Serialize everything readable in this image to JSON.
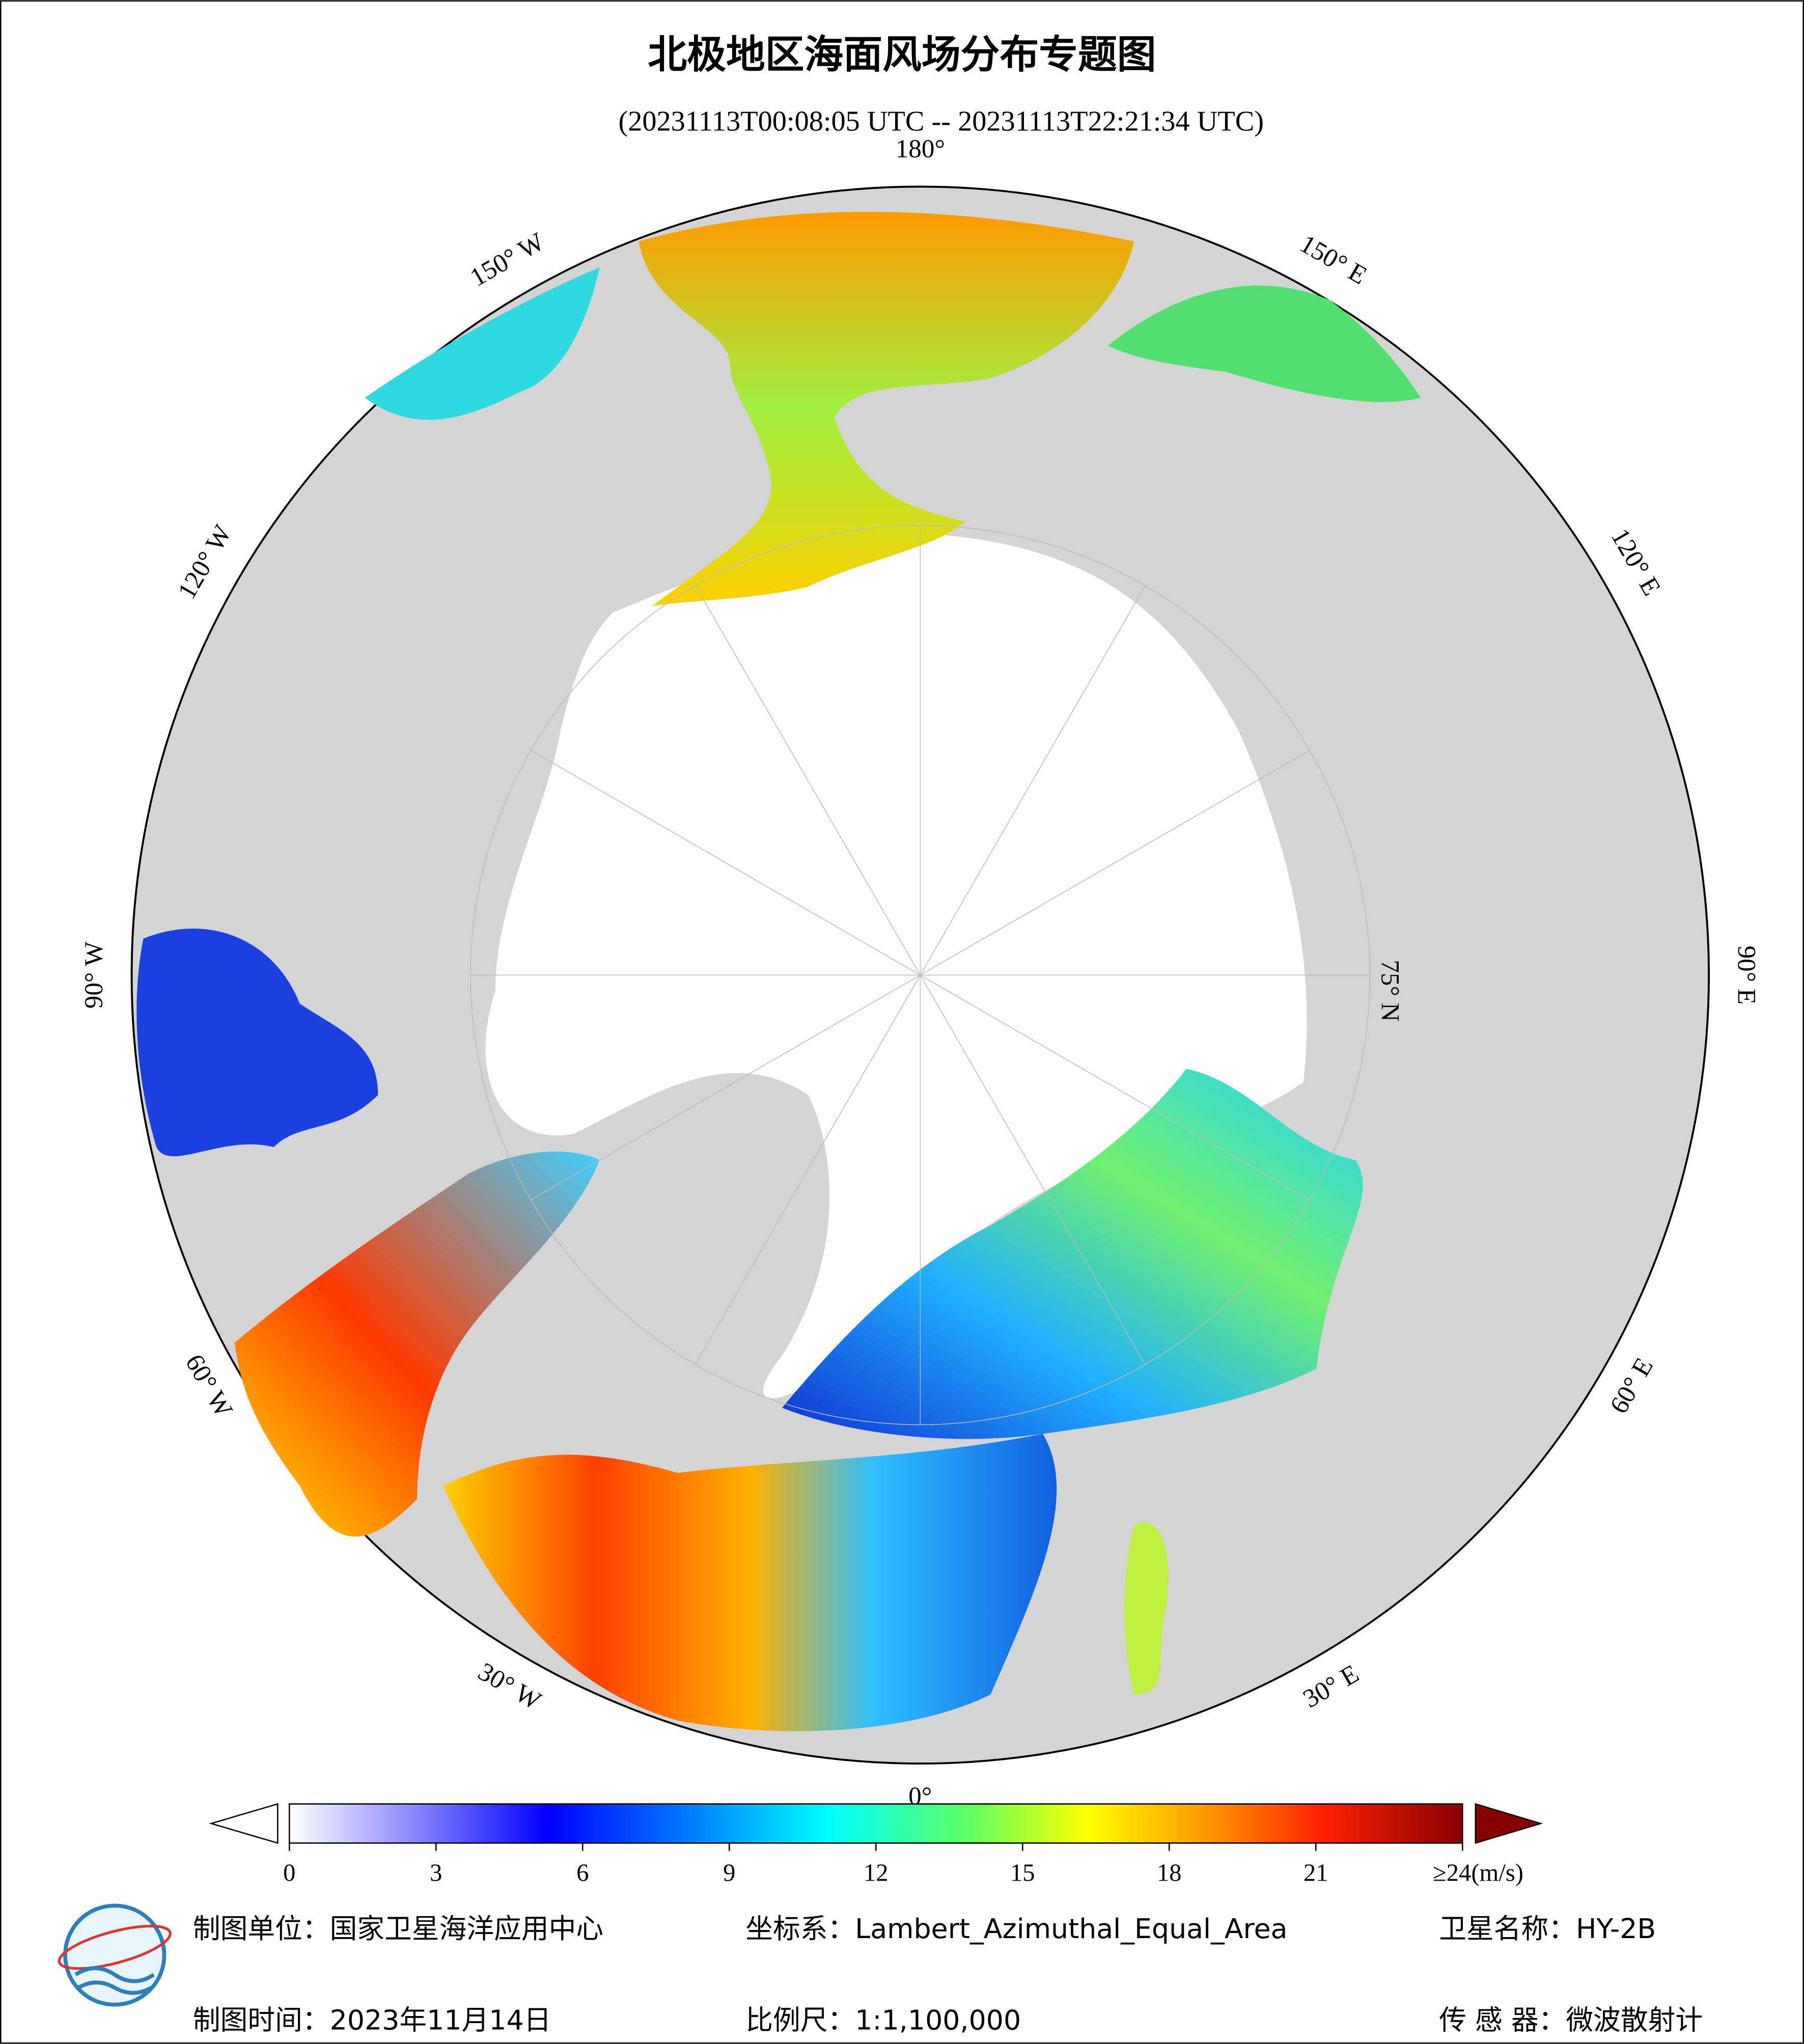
{
  "title": "北极地区海面风场分布专题图",
  "subtitle": "(20231113T00:08:05 UTC -- 20231113T22:21:34 UTC)",
  "map": {
    "longitude_labels": [
      "180°",
      "150° E",
      "120° E",
      "90° E",
      "60° E",
      "30° E",
      "0°",
      "30° W",
      "60° W",
      "90° W",
      "120° W",
      "150° W"
    ],
    "latitude_label": "75° N"
  },
  "colorbar": {
    "ticks": [
      0,
      3,
      6,
      9,
      12,
      15,
      18,
      21
    ],
    "max": 24,
    "max_label": "≥24(m/s)"
  },
  "footer": {
    "unit": "制图单位：国家卫星海洋应用中心",
    "crs": "坐标系：Lambert_Azimuthal_Equal_Area",
    "satellite": "卫星名称：HY-2B",
    "date": "制图时间：2023年11月14日",
    "scale": "比例尺：1:1,100,000",
    "sensor": "传 感 器：微波散射计"
  }
}
